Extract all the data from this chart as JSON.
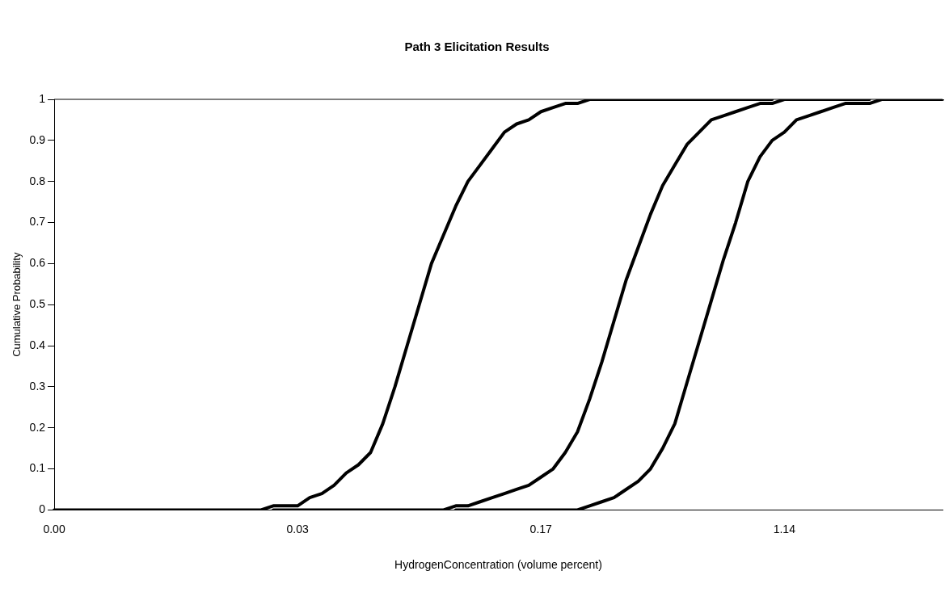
{
  "chart_data": {
    "type": "line",
    "title": "Path 3 Elicitation Results",
    "xlabel": "HydrogenConcentration (volume percent)",
    "ylabel": "Cumulative Probability",
    "categories": [
      "0.00",
      null,
      null,
      null,
      null,
      null,
      null,
      null,
      null,
      null,
      null,
      null,
      null,
      null,
      null,
      null,
      null,
      null,
      null,
      null,
      "0.03",
      null,
      null,
      null,
      null,
      null,
      null,
      null,
      null,
      null,
      null,
      null,
      null,
      null,
      null,
      null,
      null,
      null,
      null,
      null,
      "0.17",
      null,
      null,
      null,
      null,
      null,
      null,
      null,
      null,
      null,
      null,
      null,
      null,
      null,
      null,
      null,
      null,
      null,
      null,
      null,
      "1.14",
      null,
      null,
      null,
      null,
      null,
      null,
      null,
      null,
      null,
      null,
      null,
      null,
      null
    ],
    "series": [
      {
        "color": "#000000",
        "values": [
          0,
          0,
          0,
          0,
          0,
          0,
          0,
          0,
          0,
          0,
          0,
          0,
          0,
          0,
          0,
          0,
          0,
          0,
          0.01,
          0.01,
          0.01,
          0.03,
          0.04,
          0.06,
          0.09,
          0.11,
          0.14,
          0.21,
          0.3,
          0.4,
          0.5,
          0.6,
          0.67,
          0.74,
          0.8,
          0.84,
          0.88,
          0.92,
          0.94,
          0.95,
          0.97,
          0.98,
          0.99,
          0.99,
          1,
          1,
          1,
          1,
          1,
          1,
          1,
          1,
          1,
          1,
          1,
          1,
          1,
          1,
          1,
          1,
          null,
          null,
          null,
          null,
          null,
          null,
          null,
          null,
          null,
          null,
          null,
          null,
          null,
          null
        ]
      },
      {
        "color": "#000000",
        "values": [
          null,
          null,
          null,
          null,
          null,
          null,
          null,
          null,
          null,
          null,
          null,
          null,
          null,
          null,
          null,
          null,
          null,
          null,
          0,
          0,
          0,
          0,
          0,
          0,
          0,
          0,
          0,
          0,
          0,
          0,
          0,
          0,
          0,
          0.01,
          0.01,
          0.02,
          0.03,
          0.04,
          0.05,
          0.06,
          0.08,
          0.1,
          0.14,
          0.19,
          0.27,
          0.36,
          0.46,
          0.56,
          0.64,
          0.72,
          0.79,
          0.84,
          0.89,
          0.92,
          0.95,
          0.96,
          0.97,
          0.98,
          0.99,
          0.99,
          1,
          1,
          1,
          1,
          1,
          1,
          1,
          1,
          null,
          null,
          null,
          null,
          null,
          null
        ]
      },
      {
        "color": "#000000",
        "values": [
          null,
          null,
          null,
          null,
          null,
          null,
          null,
          null,
          null,
          null,
          null,
          null,
          null,
          null,
          null,
          null,
          null,
          null,
          null,
          null,
          null,
          null,
          null,
          null,
          null,
          null,
          null,
          null,
          null,
          null,
          null,
          null,
          null,
          0,
          0,
          0,
          0,
          0,
          0,
          0,
          0,
          0,
          0,
          0,
          0.01,
          0.02,
          0.03,
          0.05,
          0.07,
          0.1,
          0.15,
          0.21,
          0.31,
          0.41,
          0.51,
          0.61,
          0.7,
          0.8,
          0.86,
          0.9,
          0.92,
          0.95,
          0.96,
          0.97,
          0.98,
          0.99,
          0.99,
          0.99,
          1,
          1,
          1,
          1,
          1,
          1
        ]
      }
    ],
    "ylim": [
      0,
      1
    ],
    "yticks": [
      0,
      0.1,
      0.2,
      0.3,
      0.4,
      0.5,
      0.6,
      0.7,
      0.8,
      0.9,
      1
    ]
  }
}
